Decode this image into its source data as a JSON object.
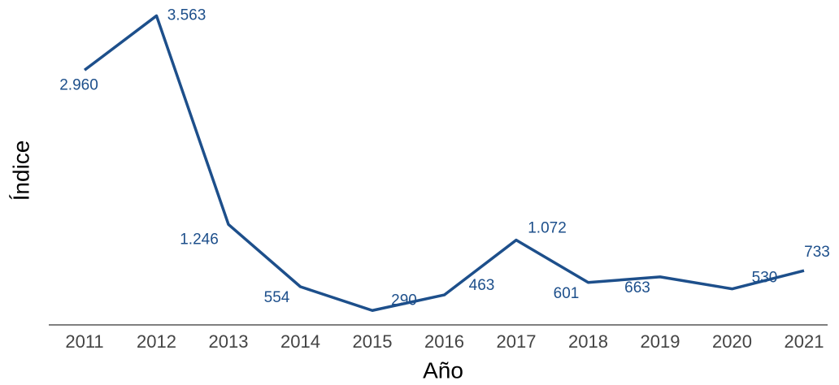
{
  "chart_data": {
    "type": "line",
    "x_label": "Año",
    "y_label": "Índice",
    "categories": [
      "2011",
      "2012",
      "2013",
      "2014",
      "2015",
      "2016",
      "2017",
      "2018",
      "2019",
      "2020",
      "2021"
    ],
    "series": [
      {
        "name": "Índice",
        "color": "#1d4f8b",
        "values": [
          2960,
          3563,
          1246,
          554,
          290,
          463,
          1072,
          601,
          663,
          530,
          733
        ],
        "value_labels": [
          "2.960",
          "3.563",
          "1.246",
          "554",
          "290",
          "463",
          "1.072",
          "601",
          "663",
          "530",
          "733"
        ]
      }
    ],
    "ylim": [
      130,
      3630
    ],
    "grid": false
  }
}
